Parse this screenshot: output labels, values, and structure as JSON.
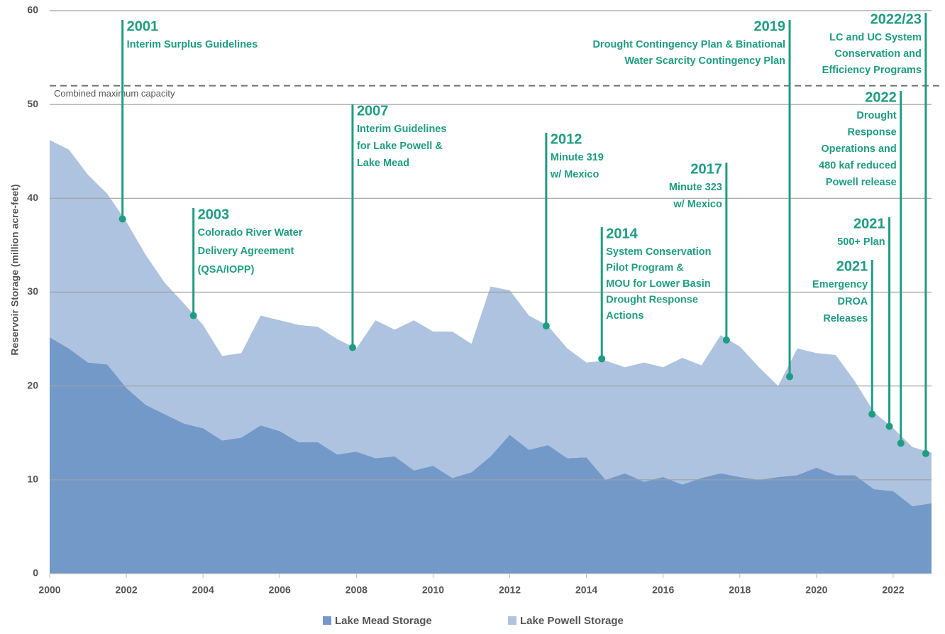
{
  "chart_data": {
    "type": "stacked_area",
    "y_label": "Reservoir Storage (million acre-feet)",
    "x": [
      2000,
      2000.5,
      2001,
      2001.5,
      2002,
      2002.5,
      2003,
      2003.5,
      2004,
      2004.5,
      2005,
      2005.5,
      2006,
      2006.5,
      2007,
      2007.5,
      2008,
      2008.5,
      2009,
      2009.5,
      2010,
      2010.5,
      2011,
      2011.5,
      2012,
      2012.5,
      2013,
      2013.5,
      2014,
      2014.5,
      2015,
      2015.5,
      2016,
      2016.5,
      2017,
      2017.5,
      2018,
      2018.5,
      2019,
      2019.5,
      2020,
      2020.5,
      2021,
      2021.5,
      2022,
      2022.5,
      2023
    ],
    "series": [
      {
        "name": "Lake Mead Storage",
        "color": "#7399c9",
        "values": [
          25.2,
          24,
          22.5,
          22.3,
          19.8,
          18,
          17,
          16,
          15.5,
          14.2,
          14.5,
          15.8,
          15.2,
          14,
          14,
          12.7,
          13,
          12.3,
          12.5,
          11,
          11.5,
          10.2,
          10.8,
          12.5,
          14.8,
          13.2,
          13.7,
          12.3,
          12.4,
          10,
          10.7,
          9.8,
          10.3,
          9.5,
          10.2,
          10.7,
          10.3,
          10,
          10.3,
          10.5,
          11.3,
          10.5,
          10.5,
          9,
          8.8,
          7.2,
          7.5
        ]
      },
      {
        "name": "Lake Powell Storage",
        "color": "#adc3e0",
        "values": [
          21.0,
          21.2,
          20.0,
          18.2,
          17.7,
          16.0,
          14.0,
          12.8,
          11.0,
          9.0,
          9.0,
          11.7,
          11.8,
          12.5,
          12.3,
          12.3,
          11.0,
          14.7,
          13.5,
          16.0,
          14.3,
          15.6,
          13.7,
          18.1,
          15.4,
          14.3,
          12.7,
          11.7,
          10.1,
          12.7,
          11.3,
          12.7,
          11.7,
          13.5,
          12.0,
          14.7,
          13.9,
          12.0,
          9.7,
          13.5,
          12.2,
          12.8,
          10.0,
          8.2,
          6.7,
          6.3,
          5.4
        ]
      }
    ],
    "xlim": [
      2000,
      2023
    ],
    "xticks": [
      2000,
      2002,
      2004,
      2006,
      2008,
      2010,
      2012,
      2014,
      2016,
      2018,
      2020,
      2022
    ],
    "ylim": [
      0,
      60
    ],
    "yticks": [
      0,
      10,
      20,
      30,
      40,
      50,
      60
    ],
    "grid": true,
    "reference_line": {
      "value": 52,
      "label": "Combined maximum capacity"
    },
    "annotation_color": "#1f9c82",
    "annotations": [
      {
        "title": "2001",
        "lines": [
          "Interim Surplus Guidelines"
        ],
        "x": 2001.9,
        "y": 37.8
      },
      {
        "title": "2003",
        "lines": [
          "Colorado River Water",
          "Delivery Agreement",
          "(QSA/IOPP)"
        ],
        "x": 2003.75,
        "y": 27.5
      },
      {
        "title": "2007",
        "lines": [
          "Interim Guidelines",
          "for Lake Powell &",
          "Lake Mead"
        ],
        "x": 2007.9,
        "y": 24.1
      },
      {
        "title": "2012",
        "lines": [
          "Minute 319",
          "w/ Mexico"
        ],
        "x": 2012.95,
        "y": 26.4
      },
      {
        "title": "2014",
        "lines": [
          "System Conservation",
          "Pilot Program &",
          "MOU for Lower Basin",
          "Drought Response",
          "Actions"
        ],
        "x": 2014.4,
        "y": 22.9
      },
      {
        "title": "2017",
        "lines": [
          "Minute 323",
          "w/ Mexico"
        ],
        "x": 2017.65,
        "y": 24.9
      },
      {
        "title": "2019",
        "lines": [
          "Drought Contingency Plan & Binational",
          "Water Scarcity Contingency Plan"
        ],
        "x": 2019.3,
        "y": 21
      },
      {
        "title": "2022/23",
        "lines": [
          "LC and UC System",
          "Conservation and",
          "Efficiency Programs"
        ],
        "x": 2022.85,
        "y": 12.8
      },
      {
        "title": "2022",
        "lines": [
          "Drought",
          "Response",
          "Operations and",
          "480 kaf reduced",
          "Powell release"
        ],
        "x": 2022.2,
        "y": 13.9
      },
      {
        "title": "2021",
        "lines": [
          "500+ Plan"
        ],
        "x": 2021.9,
        "y": 15.7
      },
      {
        "title": "2021",
        "lines": [
          "Emergency",
          "DROA",
          "Releases"
        ],
        "x": 2021.45,
        "y": 17
      }
    ]
  }
}
